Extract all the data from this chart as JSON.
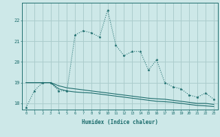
{
  "title": "",
  "xlabel": "Humidex (Indice chaleur)",
  "background_color": "#cde8e8",
  "grid_color": "#aacccc",
  "line_color": "#1a6b6b",
  "x_main": [
    0,
    1,
    2,
    3,
    4,
    5,
    6,
    7,
    8,
    9,
    10,
    11,
    12,
    13,
    14,
    15,
    16,
    17,
    18,
    19,
    20,
    21,
    22,
    23
  ],
  "y_main": [
    17.8,
    18.6,
    19.0,
    19.0,
    18.6,
    18.6,
    21.3,
    21.5,
    21.4,
    21.2,
    22.5,
    20.8,
    20.3,
    20.5,
    20.5,
    19.6,
    20.1,
    19.0,
    18.8,
    18.7,
    18.4,
    18.3,
    18.5,
    18.2
  ],
  "y_line2": [
    19.0,
    19.0,
    19.0,
    19.0,
    18.85,
    18.75,
    18.7,
    18.65,
    18.6,
    18.55,
    18.5,
    18.45,
    18.4,
    18.35,
    18.3,
    18.25,
    18.22,
    18.2,
    18.15,
    18.1,
    18.05,
    18.0,
    18.0,
    17.95
  ],
  "y_line3": [
    19.0,
    19.0,
    19.0,
    19.0,
    18.7,
    18.6,
    18.55,
    18.52,
    18.5,
    18.45,
    18.4,
    18.35,
    18.3,
    18.25,
    18.2,
    18.15,
    18.1,
    18.08,
    18.05,
    18.0,
    17.95,
    17.9,
    17.88,
    17.85
  ],
  "ylim": [
    17.7,
    22.85
  ],
  "yticks": [
    18,
    19,
    20,
    21,
    22
  ],
  "xticks": [
    0,
    1,
    2,
    3,
    4,
    5,
    6,
    7,
    8,
    9,
    10,
    11,
    12,
    13,
    14,
    15,
    16,
    17,
    18,
    19,
    20,
    21,
    22,
    23
  ]
}
